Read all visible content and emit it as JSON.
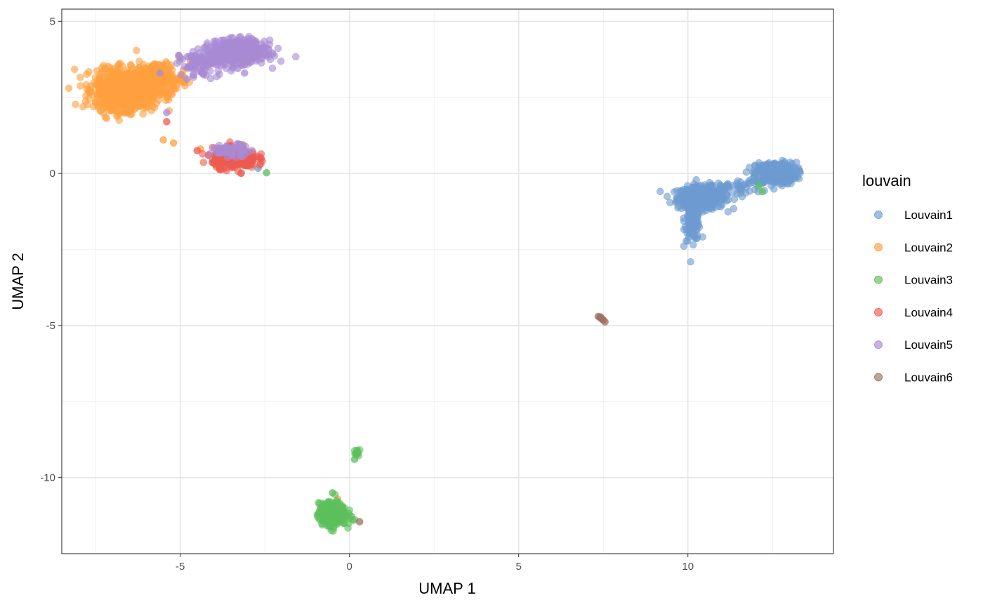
{
  "chart_data": {
    "type": "scatter",
    "title": "",
    "xlabel": "UMAP 1",
    "ylabel": "UMAP 2",
    "xlim": [
      -8.5,
      14.3
    ],
    "ylim": [
      -12.5,
      5.4
    ],
    "x_ticks": [
      -5,
      0,
      5,
      10
    ],
    "y_ticks": [
      5,
      0,
      -5,
      -10
    ],
    "grid": true,
    "legend": {
      "title": "louvain",
      "placement": "right",
      "entries": [
        "Louvain1",
        "Louvain2",
        "Louvain3",
        "Louvain4",
        "Louvain5",
        "Louvain6"
      ]
    },
    "series": [
      {
        "name": "Louvain1",
        "color": "#6c9bd1",
        "clusters": [
          {
            "cx": 10.4,
            "cy": -0.8,
            "sx": 0.35,
            "sy": 0.18,
            "n": 420
          },
          {
            "cx": 10.15,
            "cy": -1.5,
            "sx": 0.12,
            "sy": 0.35,
            "n": 120
          },
          {
            "cx": 12.6,
            "cy": 0.0,
            "sx": 0.3,
            "sy": 0.18,
            "n": 380
          },
          {
            "cx": 11.4,
            "cy": -0.45,
            "sx": 0.4,
            "sy": 0.12,
            "n": 50
          }
        ],
        "points": [
          {
            "x": -2.7,
            "y": 0.17
          },
          {
            "x": -3.5,
            "y": 0.3
          }
        ]
      },
      {
        "name": "Louvain2",
        "color": "#ffa040",
        "clusters": [
          {
            "cx": -6.6,
            "cy": 2.75,
            "sx": 0.45,
            "sy": 0.32,
            "n": 1000
          },
          {
            "cx": -5.6,
            "cy": 3.15,
            "sx": 0.35,
            "sy": 0.25,
            "n": 150
          }
        ],
        "points": [
          {
            "x": -5.5,
            "y": 1.1
          },
          {
            "x": -5.2,
            "y": 1.0
          },
          {
            "x": -4.4,
            "y": 0.8
          },
          {
            "x": -5.2,
            "y": 2.8
          },
          {
            "x": -4.7,
            "y": 3.7
          },
          {
            "x": -4.9,
            "y": 3.4
          },
          {
            "x": -0.35,
            "y": -10.7
          }
        ]
      },
      {
        "name": "Louvain3",
        "color": "#5cbf5c",
        "clusters": [
          {
            "cx": -0.5,
            "cy": -11.2,
            "sx": 0.2,
            "sy": 0.18,
            "n": 380
          },
          {
            "cx": 0.25,
            "cy": -9.2,
            "sx": 0.05,
            "sy": 0.06,
            "n": 12
          }
        ],
        "points": [
          {
            "x": 0.15,
            "y": -9.4
          },
          {
            "x": -0.5,
            "y": -10.5
          },
          {
            "x": 0.1,
            "y": -11.4
          },
          {
            "x": -2.45,
            "y": 0.02
          },
          {
            "x": 12.2,
            "y": -0.6
          },
          {
            "x": 12.1,
            "y": -0.4
          }
        ]
      },
      {
        "name": "Louvain4",
        "color": "#ee5a50",
        "clusters": [
          {
            "cx": -3.4,
            "cy": 0.5,
            "sx": 0.32,
            "sy": 0.16,
            "n": 360
          }
        ],
        "points": [
          {
            "x": -5.4,
            "y": 1.7
          },
          {
            "x": -4.5,
            "y": 0.75
          },
          {
            "x": -3.0,
            "y": 0.25
          }
        ]
      },
      {
        "name": "Louvain5",
        "color": "#a98bd4",
        "clusters": [
          {
            "cx": -3.3,
            "cy": 4.0,
            "sx": 0.4,
            "sy": 0.18,
            "n": 600
          },
          {
            "cx": -4.3,
            "cy": 3.6,
            "sx": 0.35,
            "sy": 0.2,
            "n": 110
          },
          {
            "cx": -3.5,
            "cy": 0.75,
            "sx": 0.3,
            "sy": 0.1,
            "n": 60
          }
        ],
        "points": [
          {
            "x": -5.4,
            "y": 2.0
          },
          {
            "x": -5.6,
            "y": 3.3
          },
          {
            "x": -4.8,
            "y": 3.1
          },
          {
            "x": -3.3,
            "y": 3.45
          },
          {
            "x": -3.1,
            "y": 3.3
          }
        ]
      },
      {
        "name": "Louvain6",
        "color": "#a07060",
        "clusters": [],
        "points": [
          {
            "x": 7.35,
            "y": -4.7
          },
          {
            "x": 7.4,
            "y": -4.74
          },
          {
            "x": 7.45,
            "y": -4.78
          },
          {
            "x": 7.5,
            "y": -4.82
          },
          {
            "x": 7.55,
            "y": -4.88
          },
          {
            "x": 7.42,
            "y": -4.72
          },
          {
            "x": 7.48,
            "y": -4.8
          },
          {
            "x": 0.3,
            "y": -11.45
          }
        ]
      }
    ]
  }
}
